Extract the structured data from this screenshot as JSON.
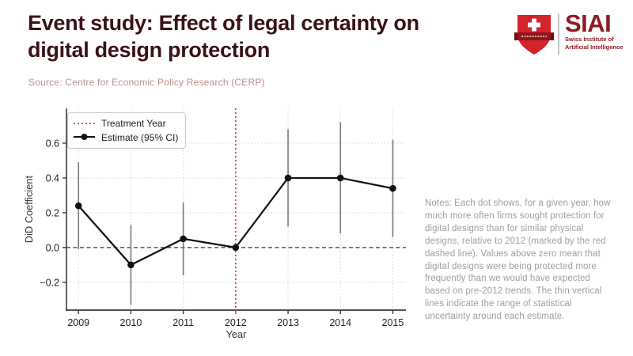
{
  "header": {
    "title_line1": "Event study: Effect of legal certainty on",
    "title_line2": "digital design protection",
    "title_color": "#3a1118",
    "source": "Source: Centre for Economic Policy Research (CERP)",
    "source_color": "#bb8e8e"
  },
  "logo": {
    "acronym": "SIAI",
    "name_line1": "Swiss Institute of",
    "name_line2": "Artificial Intelligence",
    "text_color": "#8e1b21",
    "shield_red": "#d3232b",
    "banner_red": "#8f161c"
  },
  "notes": {
    "text": "Notes: Each dot shows, for a given year, how much more often firms sought protection for digital designs than for similar physical designs, relative to 2012 (marked by the red dashed line). Values above zero mean that digital designs were being protected more frequently than we would have expected based on pre-2012 trends. The thin vertical lines indicate the range of statistical uncertainty around each estimate.",
    "color": "#9e9e9e"
  },
  "chart_data": {
    "type": "line",
    "title": "",
    "xlabel": "Year",
    "ylabel": "DiD Coefficient",
    "x": [
      2009,
      2010,
      2011,
      2012,
      2013,
      2014,
      2015
    ],
    "series": [
      {
        "name": "Estimate (95% CI)",
        "values": [
          0.24,
          -0.1,
          0.05,
          0.0,
          0.4,
          0.4,
          0.34
        ],
        "ci_low": [
          -0.01,
          -0.33,
          -0.16,
          0.0,
          0.12,
          0.08,
          0.06
        ],
        "ci_high": [
          0.49,
          0.13,
          0.26,
          0.0,
          0.68,
          0.72,
          0.62
        ]
      }
    ],
    "treatment_year": 2012,
    "yticks": [
      -0.2,
      0.0,
      0.2,
      0.4,
      0.6
    ],
    "ytick_labels": [
      "−0.2",
      "0.0",
      "0.2",
      "0.4",
      "0.6"
    ],
    "ylim": [
      -0.36,
      0.8
    ],
    "xlim": [
      2008.77,
      2015.25
    ],
    "grid": true,
    "legend": [
      "Treatment Year",
      "Estimate (95% CI)"
    ],
    "legend_position": "upper-left",
    "zero_line": true
  },
  "chart_style": {
    "grid_color": "#d8d8d8",
    "zero_line_color": "#333333",
    "treatment_line_color": "#cf3a3c",
    "error_bar_color": "#7a7a7a",
    "series_color": "#111111",
    "spine_color": "#3a3a3a",
    "tick_label_color": "#222222",
    "axis_label_color": "#333333"
  }
}
